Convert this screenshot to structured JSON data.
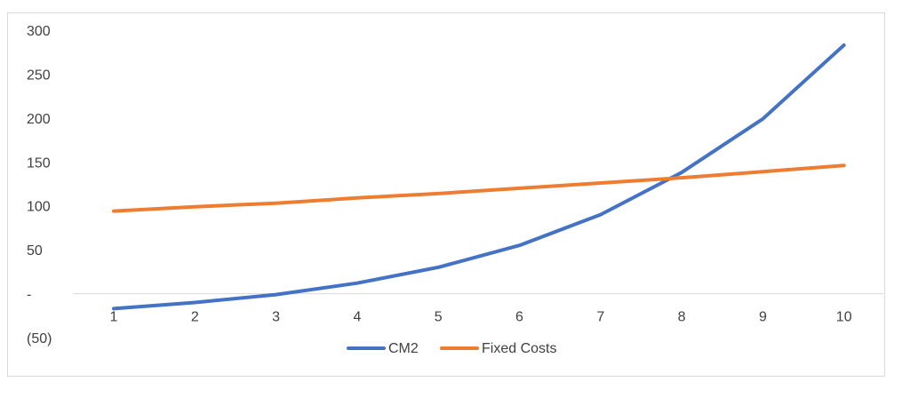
{
  "chart_data": {
    "type": "line",
    "title": "",
    "xlabel": "",
    "ylabel": "",
    "categories": [
      "1",
      "2",
      "3",
      "4",
      "5",
      "6",
      "7",
      "8",
      "9",
      "10"
    ],
    "x": [
      1,
      2,
      3,
      4,
      5,
      6,
      7,
      8,
      9,
      10
    ],
    "ylim": [
      -50,
      300
    ],
    "y_ticks": [
      300,
      250,
      200,
      150,
      100,
      50,
      0,
      -50
    ],
    "y_tick_labels": [
      "300",
      "250",
      "200",
      "150",
      "100",
      "50",
      "-",
      "(50)"
    ],
    "grid": false,
    "legend_position": "bottom",
    "series": [
      {
        "name": "CM2",
        "color": "#4472c4",
        "values": [
          -17,
          -10,
          -1,
          12,
          30,
          55,
          90,
          138,
          199,
          283
        ]
      },
      {
        "name": "Fixed Costs",
        "color": "#ed7d31",
        "values": [
          94,
          99,
          103,
          109,
          114,
          120,
          126,
          132,
          139,
          146
        ]
      }
    ]
  }
}
